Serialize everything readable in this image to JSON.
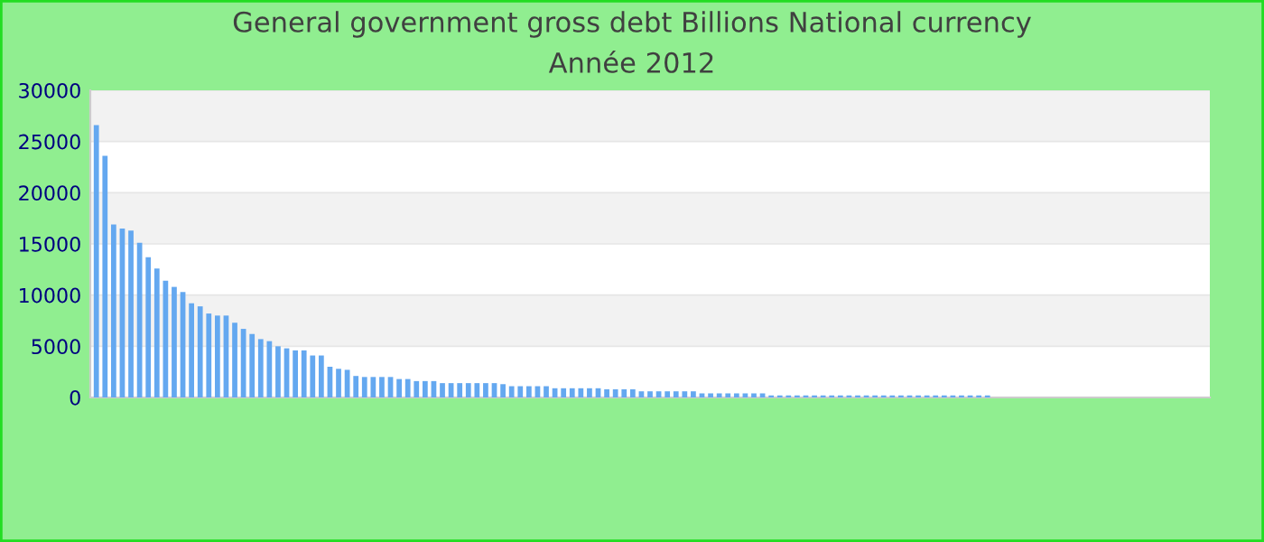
{
  "chart_data": {
    "type": "bar",
    "title": "General government gross debt Billions National currency",
    "subtitle": "Année 2012",
    "categories": [
      null,
      null,
      null,
      null,
      null,
      null,
      null,
      null,
      null,
      null,
      null,
      null,
      null,
      null,
      null,
      null,
      null,
      null,
      null,
      null,
      null,
      null,
      null,
      null,
      null,
      null,
      null,
      null,
      null,
      null,
      null,
      null,
      null,
      null,
      null,
      null,
      null,
      null,
      null,
      null,
      null,
      null,
      null,
      null,
      null,
      null,
      null,
      null,
      null,
      null,
      null,
      null,
      null,
      null,
      null,
      null,
      null,
      null,
      null,
      null,
      null,
      null,
      null,
      null,
      null,
      null,
      null,
      null,
      null,
      null,
      null,
      null,
      null,
      null,
      null,
      null,
      null,
      null,
      null,
      null,
      null,
      null,
      null,
      null,
      null,
      null,
      null,
      null,
      null,
      null,
      null,
      null,
      null,
      null,
      null,
      null,
      null,
      null,
      null,
      null,
      null,
      null,
      null,
      null,
      null,
      null,
      null,
      null,
      null,
      null,
      null,
      null,
      null,
      null,
      null,
      null,
      null,
      null,
      null,
      null,
      null,
      null,
      null,
      null,
      null,
      null,
      null,
      null,
      null
    ],
    "values": [
      26600,
      23600,
      16900,
      16500,
      16300,
      15100,
      13700,
      12600,
      11400,
      10800,
      10300,
      9200,
      8900,
      8200,
      8000,
      8000,
      7300,
      6700,
      6200,
      5700,
      5500,
      5000,
      4800,
      4600,
      4600,
      4100,
      4100,
      3000,
      2800,
      2700,
      2100,
      2000,
      2000,
      2000,
      2000,
      1800,
      1800,
      1600,
      1600,
      1600,
      1400,
      1400,
      1400,
      1400,
      1400,
      1400,
      1400,
      1300,
      1100,
      1100,
      1100,
      1100,
      1100,
      900,
      900,
      900,
      900,
      900,
      900,
      800,
      800,
      800,
      800,
      600,
      600,
      600,
      600,
      600,
      600,
      600,
      400,
      400,
      400,
      400,
      400,
      400,
      400,
      400,
      200,
      200,
      200,
      200,
      200,
      200,
      200,
      200,
      200,
      200,
      200,
      200,
      200,
      200,
      200,
      200,
      200,
      200,
      200,
      200,
      200,
      200,
      200,
      200,
      200,
      200,
      null,
      null,
      null,
      null,
      null,
      null,
      null,
      null,
      null,
      null,
      null,
      null,
      null,
      null,
      null,
      null,
      null,
      null,
      null,
      null,
      null,
      null,
      null,
      null,
      null
    ],
    "color": "#64a8f0",
    "ylim": [
      0,
      30000
    ],
    "yticks": [
      0,
      5000,
      10000,
      15000,
      20000,
      25000,
      30000
    ],
    "grid": "y"
  }
}
